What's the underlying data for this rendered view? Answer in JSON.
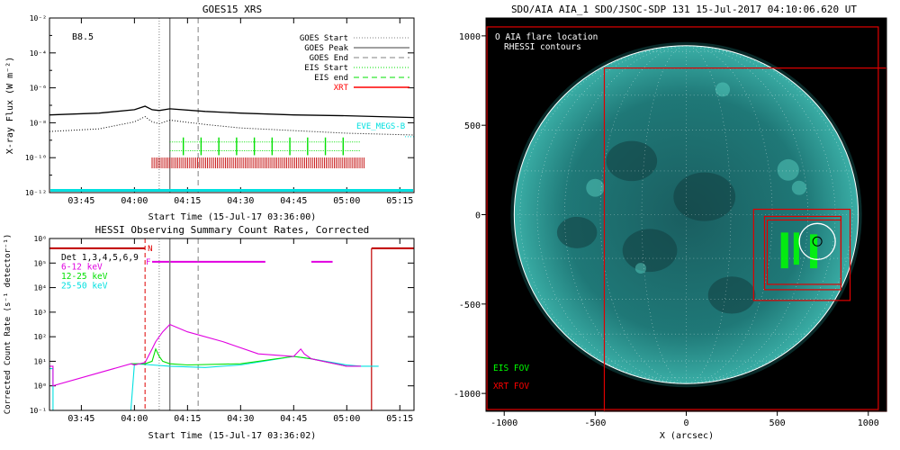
{
  "chart_data": [
    {
      "type": "line",
      "panel": "goes",
      "title": "GOES15 XRS",
      "ylabel": "X-ray Flux (W m⁻²)",
      "xlabel": "Start Time (15-Jul-17 03:36:00)",
      "class_label": "B8.5",
      "x_range": [
        "03:36",
        "05:19"
      ],
      "y_range_log10": [
        -12,
        -2
      ],
      "x_ticks": [
        "03:45",
        "04:00",
        "04:15",
        "04:30",
        "04:45",
        "05:00",
        "05:15"
      ],
      "y_ticks": [
        {
          "exp": -2,
          "label": "10⁻²"
        },
        {
          "exp": -4,
          "label": "10⁻⁴"
        },
        {
          "exp": -6,
          "label": "10⁻⁶"
        },
        {
          "exp": -8,
          "label": "10⁻⁸"
        },
        {
          "exp": -10,
          "label": "10⁻¹⁰"
        },
        {
          "exp": -12,
          "label": "10⁻¹²"
        }
      ],
      "legend": [
        {
          "label": "GOES Start",
          "color": "#808080",
          "style": "dotted"
        },
        {
          "label": "GOES Peak",
          "color": "#808080",
          "style": "solid"
        },
        {
          "label": "GOES End",
          "color": "#808080",
          "style": "dashed"
        },
        {
          "label": "EIS Start",
          "color": "#00e000",
          "style": "dotted"
        },
        {
          "label": "EIS end",
          "color": "#00e000",
          "style": "dashed"
        },
        {
          "label": "XRT",
          "color": "#ff0000",
          "style": "solid"
        }
      ],
      "eve_label": "EVE_MEGS-B",
      "goes_times": {
        "start": "04:07",
        "peak": "04:10",
        "end": "04:18"
      },
      "series": [
        {
          "name": "long",
          "style": "solid",
          "color": "#000000",
          "x": [
            "03:36",
            "03:50",
            "04:00",
            "04:03",
            "04:05",
            "04:07",
            "04:10",
            "04:20",
            "04:30",
            "04:45",
            "05:00",
            "05:19"
          ],
          "log10_flux": [
            -7.55,
            -7.45,
            -7.25,
            -7.05,
            -7.25,
            -7.3,
            -7.2,
            -7.35,
            -7.45,
            -7.55,
            -7.6,
            -7.7
          ]
        },
        {
          "name": "short",
          "style": "dotted",
          "color": "#000000",
          "x": [
            "03:36",
            "03:50",
            "04:00",
            "04:03",
            "04:05",
            "04:07",
            "04:10",
            "04:20",
            "04:30",
            "04:45",
            "05:00",
            "05:19"
          ],
          "log10_flux": [
            -8.5,
            -8.35,
            -7.95,
            -7.65,
            -7.95,
            -8.05,
            -7.85,
            -8.1,
            -8.3,
            -8.45,
            -8.6,
            -8.7
          ]
        }
      ],
      "eis_rows": [
        {
          "log10": -9.1,
          "start": "04:10",
          "end": "05:04",
          "count": 10
        },
        {
          "log10": -9.6,
          "start": "04:10",
          "end": "05:04",
          "count": 10
        }
      ],
      "xrt": {
        "log10": -10.3,
        "start": "04:05",
        "end": "05:05"
      }
    },
    {
      "type": "line",
      "panel": "hessi",
      "title": "HESSI Observing Summary Count Rates, Corrected",
      "ylabel": "Corrected Count Rate (s⁻¹ detector⁻¹)",
      "xlabel": "Start Time (15-Jul-17 03:36:02)",
      "x_range": [
        "03:36",
        "05:19"
      ],
      "y_range_log10": [
        -1,
        6
      ],
      "x_ticks": [
        "03:45",
        "04:00",
        "04:15",
        "04:30",
        "04:45",
        "05:00",
        "05:15"
      ],
      "y_ticks": [
        {
          "exp": 6,
          "label": "10⁶"
        },
        {
          "exp": 5,
          "label": "10⁵"
        },
        {
          "exp": 4,
          "label": "10⁴"
        },
        {
          "exp": 3,
          "label": "10³"
        },
        {
          "exp": 2,
          "label": "10²"
        },
        {
          "exp": 1,
          "label": "10¹"
        },
        {
          "exp": 0,
          "label": "10⁰"
        },
        {
          "exp": -1,
          "label": "10⁻¹"
        }
      ],
      "legend": [
        {
          "label": "Det 1,3,4,5,6,9",
          "color": "#000000"
        },
        {
          "label": "6-12 keV",
          "color": "#e000e0"
        },
        {
          "label": "12-25 keV",
          "color": "#00e000"
        },
        {
          "label": "25-50 keV",
          "color": "#00e0e0"
        }
      ],
      "flag_labels": {
        "night": "N",
        "flare": "F"
      },
      "series": [
        {
          "name": "6-12 keV",
          "color": "#e000e0",
          "x": [
            "03:36",
            "03:37",
            "03:37",
            "03:59",
            "04:00",
            "04:03",
            "04:05",
            "04:06",
            "04:08",
            "04:10",
            "04:15",
            "04:25",
            "04:35",
            "04:45",
            "04:47",
            "04:48",
            "04:50",
            "04:55",
            "05:00",
            "05:04"
          ],
          "log10_rate": [
            0.8,
            0.8,
            0,
            0.9,
            0.85,
            0.95,
            1.5,
            1.8,
            2.2,
            2.5,
            2.2,
            1.8,
            1.3,
            1.2,
            1.5,
            1.3,
            1.1,
            0.95,
            0.8,
            0.8
          ]
        },
        {
          "name": "12-25 keV",
          "color": "#00e000",
          "x": [
            "03:59",
            "04:03",
            "04:05",
            "04:06",
            "04:07",
            "04:08",
            "04:10",
            "04:15",
            "04:30",
            "04:45",
            "04:50",
            "05:00",
            "05:04"
          ],
          "log10_rate": [
            0.9,
            0.9,
            1.0,
            1.5,
            1.2,
            1.0,
            0.9,
            0.85,
            0.9,
            1.2,
            1.1,
            0.8,
            0.8
          ]
        },
        {
          "name": "25-50 keV",
          "color": "#00e0e0",
          "x": [
            "03:36",
            "03:37",
            "03:37",
            "03:59",
            "04:00",
            "04:05",
            "04:10",
            "04:20",
            "04:30",
            "04:45",
            "04:50",
            "05:00",
            "05:04",
            "05:09"
          ],
          "log10_rate": [
            0.7,
            0.7,
            -1,
            -1,
            0.9,
            0.85,
            0.8,
            0.75,
            0.85,
            1.2,
            1.1,
            0.85,
            0.8,
            0.8
          ]
        }
      ],
      "night": [
        {
          "start": "03:36",
          "end": "04:03"
        },
        {
          "start": "05:07",
          "end": "05:19"
        }
      ],
      "flare_bars": [
        {
          "start": "04:05",
          "end": "04:37"
        },
        {
          "start": "04:50",
          "end": "04:56"
        }
      ],
      "goes_times": {
        "start": "04:07",
        "peak": "04:10",
        "end": "04:18"
      }
    },
    {
      "type": "map",
      "panel": "aia",
      "title": "SDO/AIA AIA_1 SDO/JSOC-SDP 131 15-Jul-2017 04:10:06.620 UT",
      "xlabel": "X (arcsec)",
      "x_range": [
        -1100,
        1100
      ],
      "y_range": [
        -1100,
        1100
      ],
      "ticks": [
        -1000,
        -500,
        0,
        500,
        1000
      ],
      "legend_top": [
        "O AIA flare location",
        "RHESSI contours"
      ],
      "legend_bottom": [
        {
          "label": "EIS FOV",
          "color": "#00ff00"
        },
        {
          "label": "XRT FOV",
          "color": "#ff0000"
        }
      ],
      "solar_radius": 945,
      "flare_location": [
        720,
        -150
      ],
      "xrt_fov_boxes": [
        [
          -1095,
          1050,
          1055,
          -1090
        ],
        [
          -450,
          820,
          1100,
          -1100
        ],
        [
          370,
          30,
          900,
          -480
        ],
        [
          430,
          -10,
          850,
          -420
        ],
        [
          445,
          -30,
          850,
          -390
        ]
      ],
      "eis_fov": [
        [
          520,
          -100,
          560,
          -300
        ],
        [
          590,
          -100,
          620,
          -280
        ],
        [
          680,
          -110,
          720,
          -300
        ]
      ],
      "colors": {
        "sun": "#1c8a86",
        "limb": "#ffffff",
        "box": "#e00000",
        "eis": "#00ff00"
      }
    }
  ]
}
